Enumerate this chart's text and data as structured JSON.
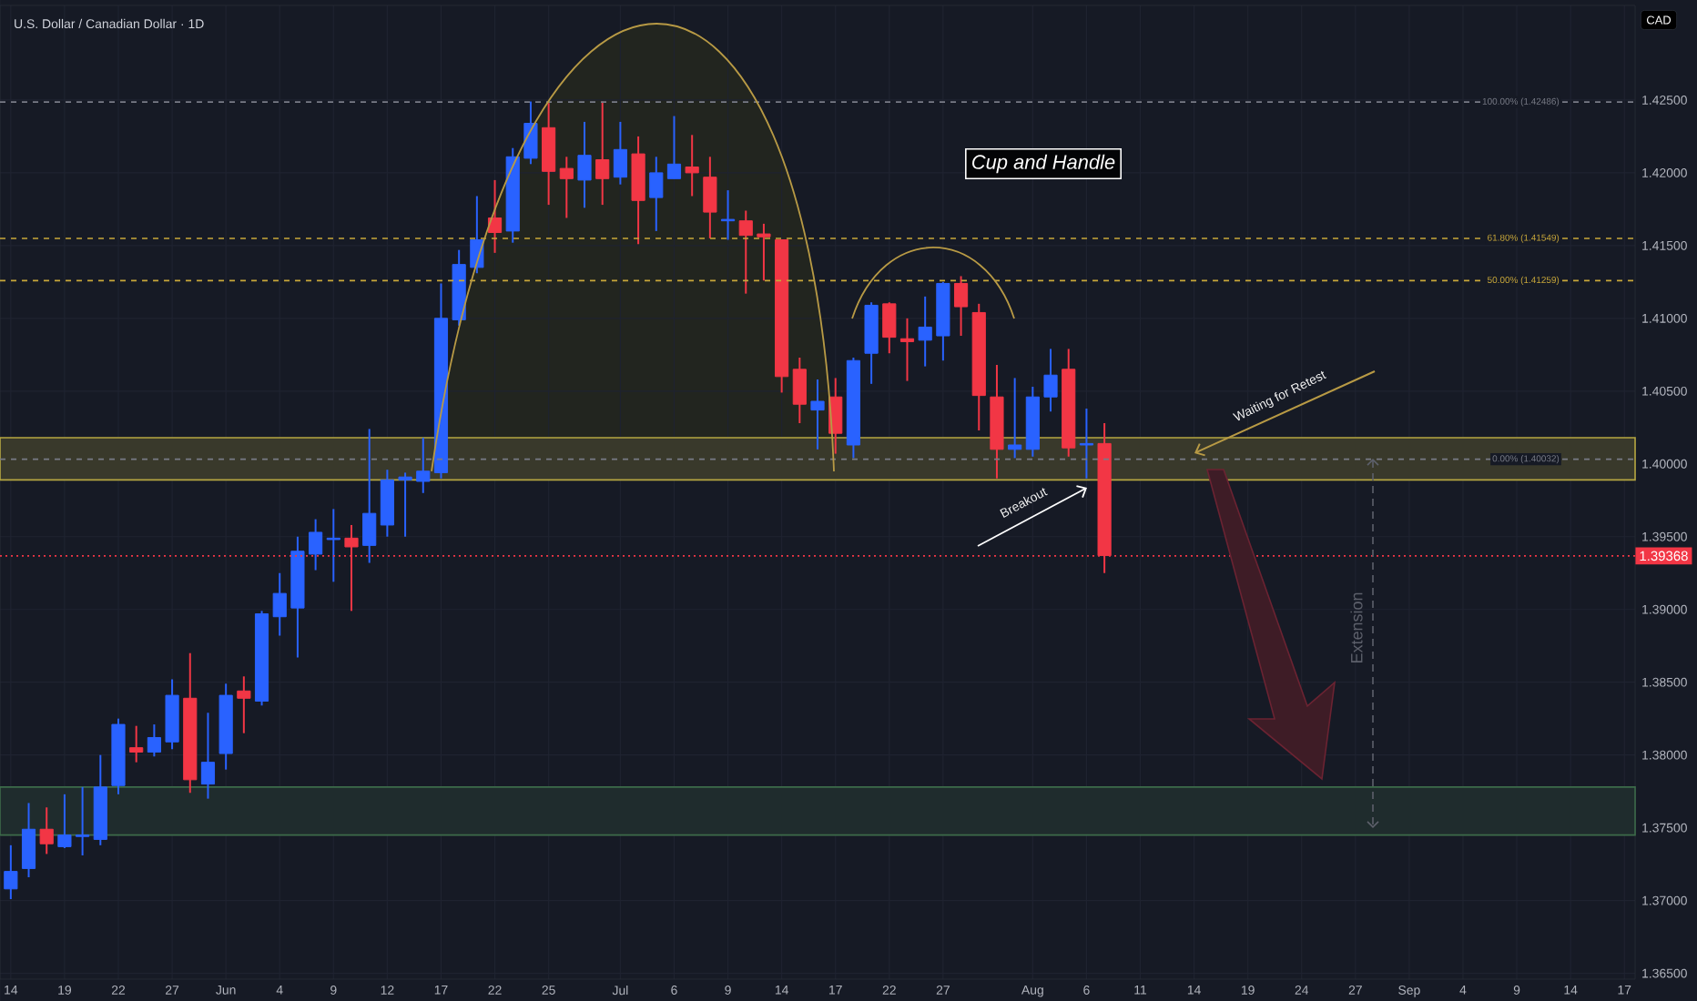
{
  "chart_data": {
    "type": "candlestick",
    "title": "U.S. Dollar / Canadian Dollar · 1D",
    "categories": [
      "14",
      null,
      null,
      "19",
      null,
      null,
      "22",
      null,
      null,
      "27",
      null,
      null,
      "Jun",
      null,
      null,
      "4",
      null,
      null,
      "9",
      null,
      null,
      "12",
      null,
      null,
      "17",
      null,
      null,
      "22",
      null,
      null,
      "25",
      null,
      null,
      null,
      "Jul",
      null,
      null,
      "6",
      null,
      null,
      "9",
      null,
      null,
      "14",
      null,
      null,
      "17",
      null,
      null,
      "22",
      null,
      null,
      "27",
      null,
      null,
      null,
      null,
      "Aug",
      null,
      null,
      "6",
      null,
      null,
      "11",
      null,
      null,
      "14",
      null,
      null,
      "19",
      null,
      null,
      "24",
      null,
      null,
      "27",
      null,
      null,
      "Sep",
      null,
      null,
      "4",
      null,
      null,
      "9",
      null,
      null,
      "14",
      null,
      null,
      "17"
    ],
    "ohlc": [
      [
        1.3708,
        1.3738,
        1.3701,
        1.372
      ],
      [
        1.3722,
        1.3767,
        1.3716,
        1.3749
      ],
      [
        1.3749,
        1.3764,
        1.3732,
        1.3739
      ],
      [
        1.3737,
        1.3773,
        1.3736,
        1.3745
      ],
      [
        1.3744,
        1.3778,
        1.3731,
        1.3745
      ],
      [
        1.3742,
        1.38,
        1.3738,
        1.3778
      ],
      [
        1.3779,
        1.3825,
        1.3773,
        1.3821
      ],
      [
        1.3805,
        1.382,
        1.3795,
        1.3802
      ],
      [
        1.3802,
        1.3821,
        1.3799,
        1.3812
      ],
      [
        1.3809,
        1.3852,
        1.3804,
        1.3841
      ],
      [
        1.3839,
        1.387,
        1.3774,
        1.3783
      ],
      [
        1.378,
        1.3829,
        1.377,
        1.3795
      ],
      [
        1.3801,
        1.3849,
        1.379,
        1.3841
      ],
      [
        1.3844,
        1.3854,
        1.3815,
        1.3839
      ],
      [
        1.3837,
        1.3899,
        1.3834,
        1.3897
      ],
      [
        1.3895,
        1.3925,
        1.3882,
        1.3911
      ],
      [
        1.3901,
        1.395,
        1.3867,
        1.394
      ],
      [
        1.3938,
        1.3962,
        1.3927,
        1.3953
      ],
      [
        1.3948,
        1.3969,
        1.3919,
        1.3949
      ],
      [
        1.3949,
        1.3958,
        1.3899,
        1.3943
      ],
      [
        1.3944,
        1.4024,
        1.3932,
        1.3966
      ],
      [
        1.3958,
        1.3996,
        1.395,
        1.3989
      ],
      [
        1.3989,
        1.3994,
        1.395,
        1.3991
      ],
      [
        1.3988,
        1.4018,
        1.398,
        1.3995
      ],
      [
        1.3994,
        1.4124,
        1.399,
        1.41
      ],
      [
        1.4099,
        1.4147,
        1.4095,
        1.4137
      ],
      [
        1.4135,
        1.4184,
        1.4131,
        1.4154
      ],
      [
        1.4169,
        1.4195,
        1.4145,
        1.4159
      ],
      [
        1.416,
        1.4217,
        1.4152,
        1.4211
      ],
      [
        1.421,
        1.4249,
        1.4206,
        1.4234
      ],
      [
        1.4231,
        1.4248,
        1.4178,
        1.4201
      ],
      [
        1.4203,
        1.4211,
        1.4169,
        1.4196
      ],
      [
        1.4195,
        1.4235,
        1.4176,
        1.4212
      ],
      [
        1.4209,
        1.4249,
        1.4178,
        1.4196
      ],
      [
        1.4197,
        1.4235,
        1.4192,
        1.4216
      ],
      [
        1.4213,
        1.4225,
        1.4151,
        1.4181
      ],
      [
        1.4183,
        1.4211,
        1.416,
        1.42
      ],
      [
        1.4196,
        1.4239,
        1.4196,
        1.4206
      ],
      [
        1.4204,
        1.4226,
        1.4184,
        1.42
      ],
      [
        1.4197,
        1.4211,
        1.4155,
        1.4173
      ],
      [
        1.4167,
        1.4188,
        1.4154,
        1.4168
      ],
      [
        1.4167,
        1.4174,
        1.4117,
        1.4157
      ],
      [
        1.4158,
        1.4165,
        1.4126,
        1.4156
      ],
      [
        1.4154,
        1.4154,
        1.4049,
        1.406
      ],
      [
        1.4065,
        1.4073,
        1.4028,
        1.4041
      ],
      [
        1.4037,
        1.4058,
        1.401,
        1.4043
      ],
      [
        1.4046,
        1.4059,
        1.4007,
        1.4021
      ],
      [
        1.4013,
        1.4073,
        1.4004,
        1.4071
      ],
      [
        1.4076,
        1.4111,
        1.4055,
        1.4109
      ],
      [
        1.411,
        1.4111,
        1.4076,
        1.4087
      ],
      [
        1.4086,
        1.41,
        1.4057,
        1.4084
      ],
      [
        1.4085,
        1.4115,
        1.4067,
        1.4094
      ],
      [
        1.4088,
        1.4125,
        1.4071,
        1.4124
      ],
      [
        1.4124,
        1.4129,
        1.4088,
        1.4108
      ],
      [
        1.4104,
        1.411,
        1.4023,
        1.4047
      ],
      [
        1.4046,
        1.4068,
        1.399,
        1.401
      ],
      [
        1.401,
        1.4059,
        1.4004,
        1.4013
      ],
      [
        1.401,
        1.4053,
        1.4005,
        1.4046
      ],
      [
        1.4046,
        1.4079,
        1.4036,
        1.4061
      ],
      [
        1.4065,
        1.4079,
        1.4005,
        1.4011
      ],
      [
        1.4013,
        1.4038,
        1.399,
        1.4014
      ],
      [
        1.4014,
        1.4028,
        1.3925,
        1.3937
      ],
      null,
      null,
      null,
      null,
      null,
      null,
      null,
      null,
      null,
      null,
      null,
      null,
      null,
      null,
      null,
      null,
      null,
      null,
      null,
      null,
      null,
      null,
      null,
      null,
      null,
      null,
      null,
      null,
      null
    ],
    "colors": [
      "#2962ff",
      "#2962ff",
      "#f23645",
      "#2962ff",
      "#2962ff",
      "#2962ff",
      "#2962ff",
      "#f23645",
      "#2962ff",
      "#2962ff",
      "#f23645",
      "#2962ff",
      "#2962ff",
      "#f23645",
      "#2962ff",
      "#2962ff",
      "#2962ff",
      "#2962ff",
      "#2962ff",
      "#f23645",
      "#2962ff",
      "#2962ff",
      "#2962ff",
      "#2962ff",
      "#2962ff",
      "#2962ff",
      "#2962ff",
      "#f23645",
      "#2962ff",
      "#2962ff",
      "#f23645",
      "#f23645",
      "#2962ff",
      "#f23645",
      "#2962ff",
      "#f23645",
      "#2962ff",
      "#2962ff",
      "#f23645",
      "#f23645",
      "#2962ff",
      "#f23645",
      "#f23645",
      "#f23645",
      "#f23645",
      "#2962ff",
      "#f23645",
      "#2962ff",
      "#2962ff",
      "#f23645",
      "#f23645",
      "#2962ff",
      "#2962ff",
      "#f23645",
      "#f23645",
      "#f23645",
      "#2962ff",
      "#2962ff",
      "#2962ff",
      "#f23645",
      "#2962ff",
      "#f23645",
      null,
      null,
      null,
      null,
      null,
      null,
      null,
      null,
      null,
      null,
      null,
      null,
      null,
      null,
      null,
      null,
      null,
      null,
      null,
      null,
      null,
      null,
      null,
      null,
      null,
      null,
      null,
      null,
      null
    ],
    "ylim": [
      1.3646,
      1.4315
    ],
    "yticks": [
      {
        "value": 1.365,
        "label": "1.36500"
      },
      {
        "value": 1.37,
        "label": "1.37000"
      },
      {
        "value": 1.375,
        "label": "1.37500"
      },
      {
        "value": 1.38,
        "label": "1.38000"
      },
      {
        "value": 1.385,
        "label": "1.38500"
      },
      {
        "value": 1.39,
        "label": "1.39000"
      },
      {
        "value": 1.395,
        "label": "1.39500"
      },
      {
        "value": 1.4,
        "label": "1.40000"
      },
      {
        "value": 1.405,
        "label": "1.40500"
      },
      {
        "value": 1.41,
        "label": "1.41000"
      },
      {
        "value": 1.415,
        "label": "1.41500"
      },
      {
        "value": 1.42,
        "label": "1.42000"
      },
      {
        "value": 1.425,
        "label": "1.42500"
      }
    ],
    "grid": true,
    "ref_lines": [
      {
        "axis": "y",
        "value": 1.42486,
        "label": "100.00% (1.42486)",
        "color": "#787b86",
        "line_style": "dashed"
      },
      {
        "axis": "y",
        "value": 1.41549,
        "label": "61.80% (1.41549)",
        "color": "#c9a83a",
        "line_style": "dashed"
      },
      {
        "axis": "y",
        "value": 1.41259,
        "label": "50.00% (1.41259)",
        "color": "#c9a83a",
        "line_style": "dashed"
      },
      {
        "axis": "y",
        "value": 1.40032,
        "label": "0.00% (1.40032)",
        "color": "#787b86",
        "line_style": "dashed"
      },
      {
        "axis": "y",
        "value": 1.39368,
        "label": "1.39368",
        "color": "#f23645",
        "line_style": "dotted"
      }
    ],
    "bands": [
      {
        "axis": "y",
        "from": 1.3989,
        "to": 1.4018,
        "color": "#b5a642"
      },
      {
        "axis": "y",
        "from": 1.3745,
        "to": 1.3778,
        "color": "#3d6b4a"
      }
    ],
    "annotations": [
      "Cup and Handle",
      "Breakout",
      "Waiting for Retest",
      "Extension",
      "CAD"
    ]
  }
}
